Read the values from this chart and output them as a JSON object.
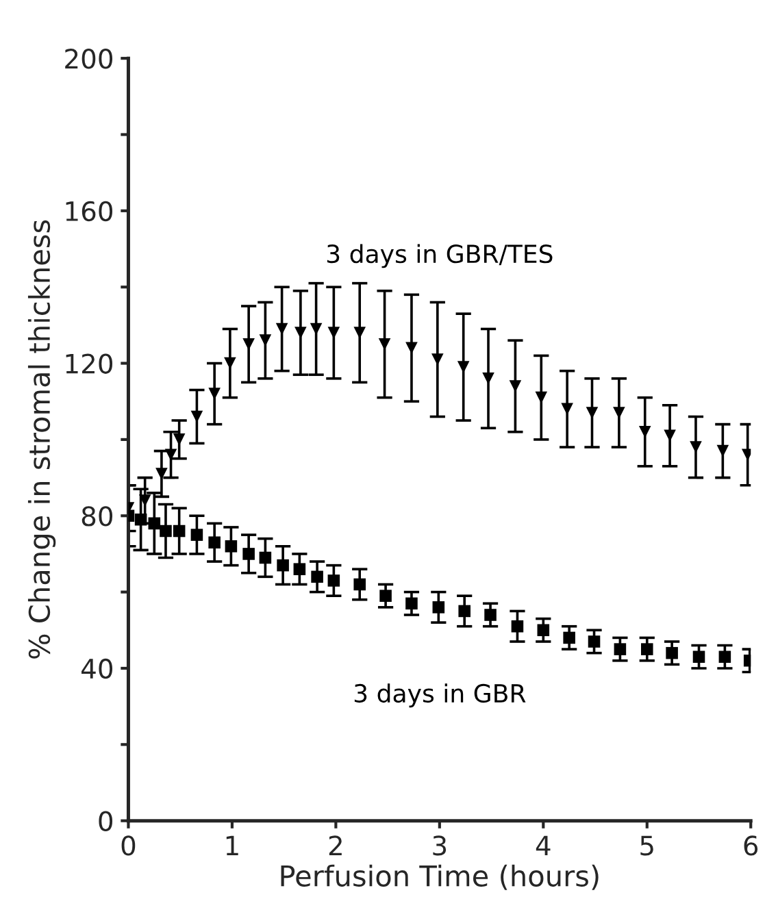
{
  "chart_data": {
    "type": "scatter",
    "xlabel": "Perfusion Time (hours)",
    "ylabel": "% Change in stromal thickness",
    "xlim": [
      0,
      6
    ],
    "xticks": [
      0,
      1,
      2,
      3,
      4,
      5,
      6
    ],
    "ylim": [
      0,
      200
    ],
    "yticks": [
      0,
      {
        "value": 20,
        "label": null
      },
      40,
      {
        "value": 60,
        "label": null
      },
      80,
      {
        "value": 100,
        "label": null
      },
      120,
      {
        "value": 140,
        "label": null
      },
      160,
      {
        "value": 180,
        "label": null
      },
      200
    ],
    "grid": false,
    "legend": false,
    "series": [
      {
        "name": "3 days in GBR/TES",
        "color": "#000000",
        "marker": "triangle",
        "x": [
          0,
          0.16,
          0.32,
          0.41,
          0.49,
          0.66,
          0.83,
          0.98,
          1.16,
          1.32,
          1.48,
          1.66,
          1.81,
          1.98,
          2.23,
          2.47,
          2.73,
          2.98,
          3.23,
          3.47,
          3.73,
          3.98,
          4.23,
          4.47,
          4.73,
          4.98,
          5.22,
          5.47,
          5.73,
          5.97
        ],
        "values": [
          82,
          84,
          91,
          96,
          100,
          106,
          112,
          120,
          125,
          126,
          129,
          128,
          129,
          128,
          128,
          125,
          124,
          121,
          119,
          116,
          114,
          111,
          108,
          107,
          107,
          102,
          101,
          98,
          97,
          96
        ],
        "errors": [
          6,
          6,
          6,
          6,
          5,
          7,
          8,
          9,
          10,
          10,
          11,
          11,
          12,
          12,
          13,
          14,
          14,
          15,
          14,
          13,
          12,
          11,
          10,
          9,
          9,
          9,
          8,
          8,
          7,
          8
        ]
      },
      {
        "name": "3 days in GBR",
        "color": "#000000",
        "marker": "square",
        "x": [
          0,
          0.12,
          0.25,
          0.36,
          0.49,
          0.66,
          0.83,
          0.99,
          1.16,
          1.32,
          1.49,
          1.65,
          1.82,
          1.98,
          2.23,
          2.48,
          2.73,
          2.99,
          3.24,
          3.49,
          3.75,
          4.0,
          4.25,
          4.49,
          4.74,
          5.0,
          5.24,
          5.5,
          5.75,
          5.99
        ],
        "values": [
          80,
          79,
          78,
          76,
          76,
          75,
          73,
          72,
          70,
          69,
          67,
          66,
          64,
          63,
          62,
          59,
          57,
          56,
          55,
          54,
          51,
          50,
          48,
          47,
          45,
          45,
          44,
          43,
          43,
          42
        ],
        "errors": [
          8,
          8,
          8,
          7,
          6,
          5,
          5,
          5,
          5,
          5,
          5,
          4,
          4,
          4,
          4,
          3,
          3,
          4,
          4,
          3,
          4,
          3,
          3,
          3,
          3,
          3,
          3,
          3,
          3,
          3
        ]
      }
    ]
  }
}
